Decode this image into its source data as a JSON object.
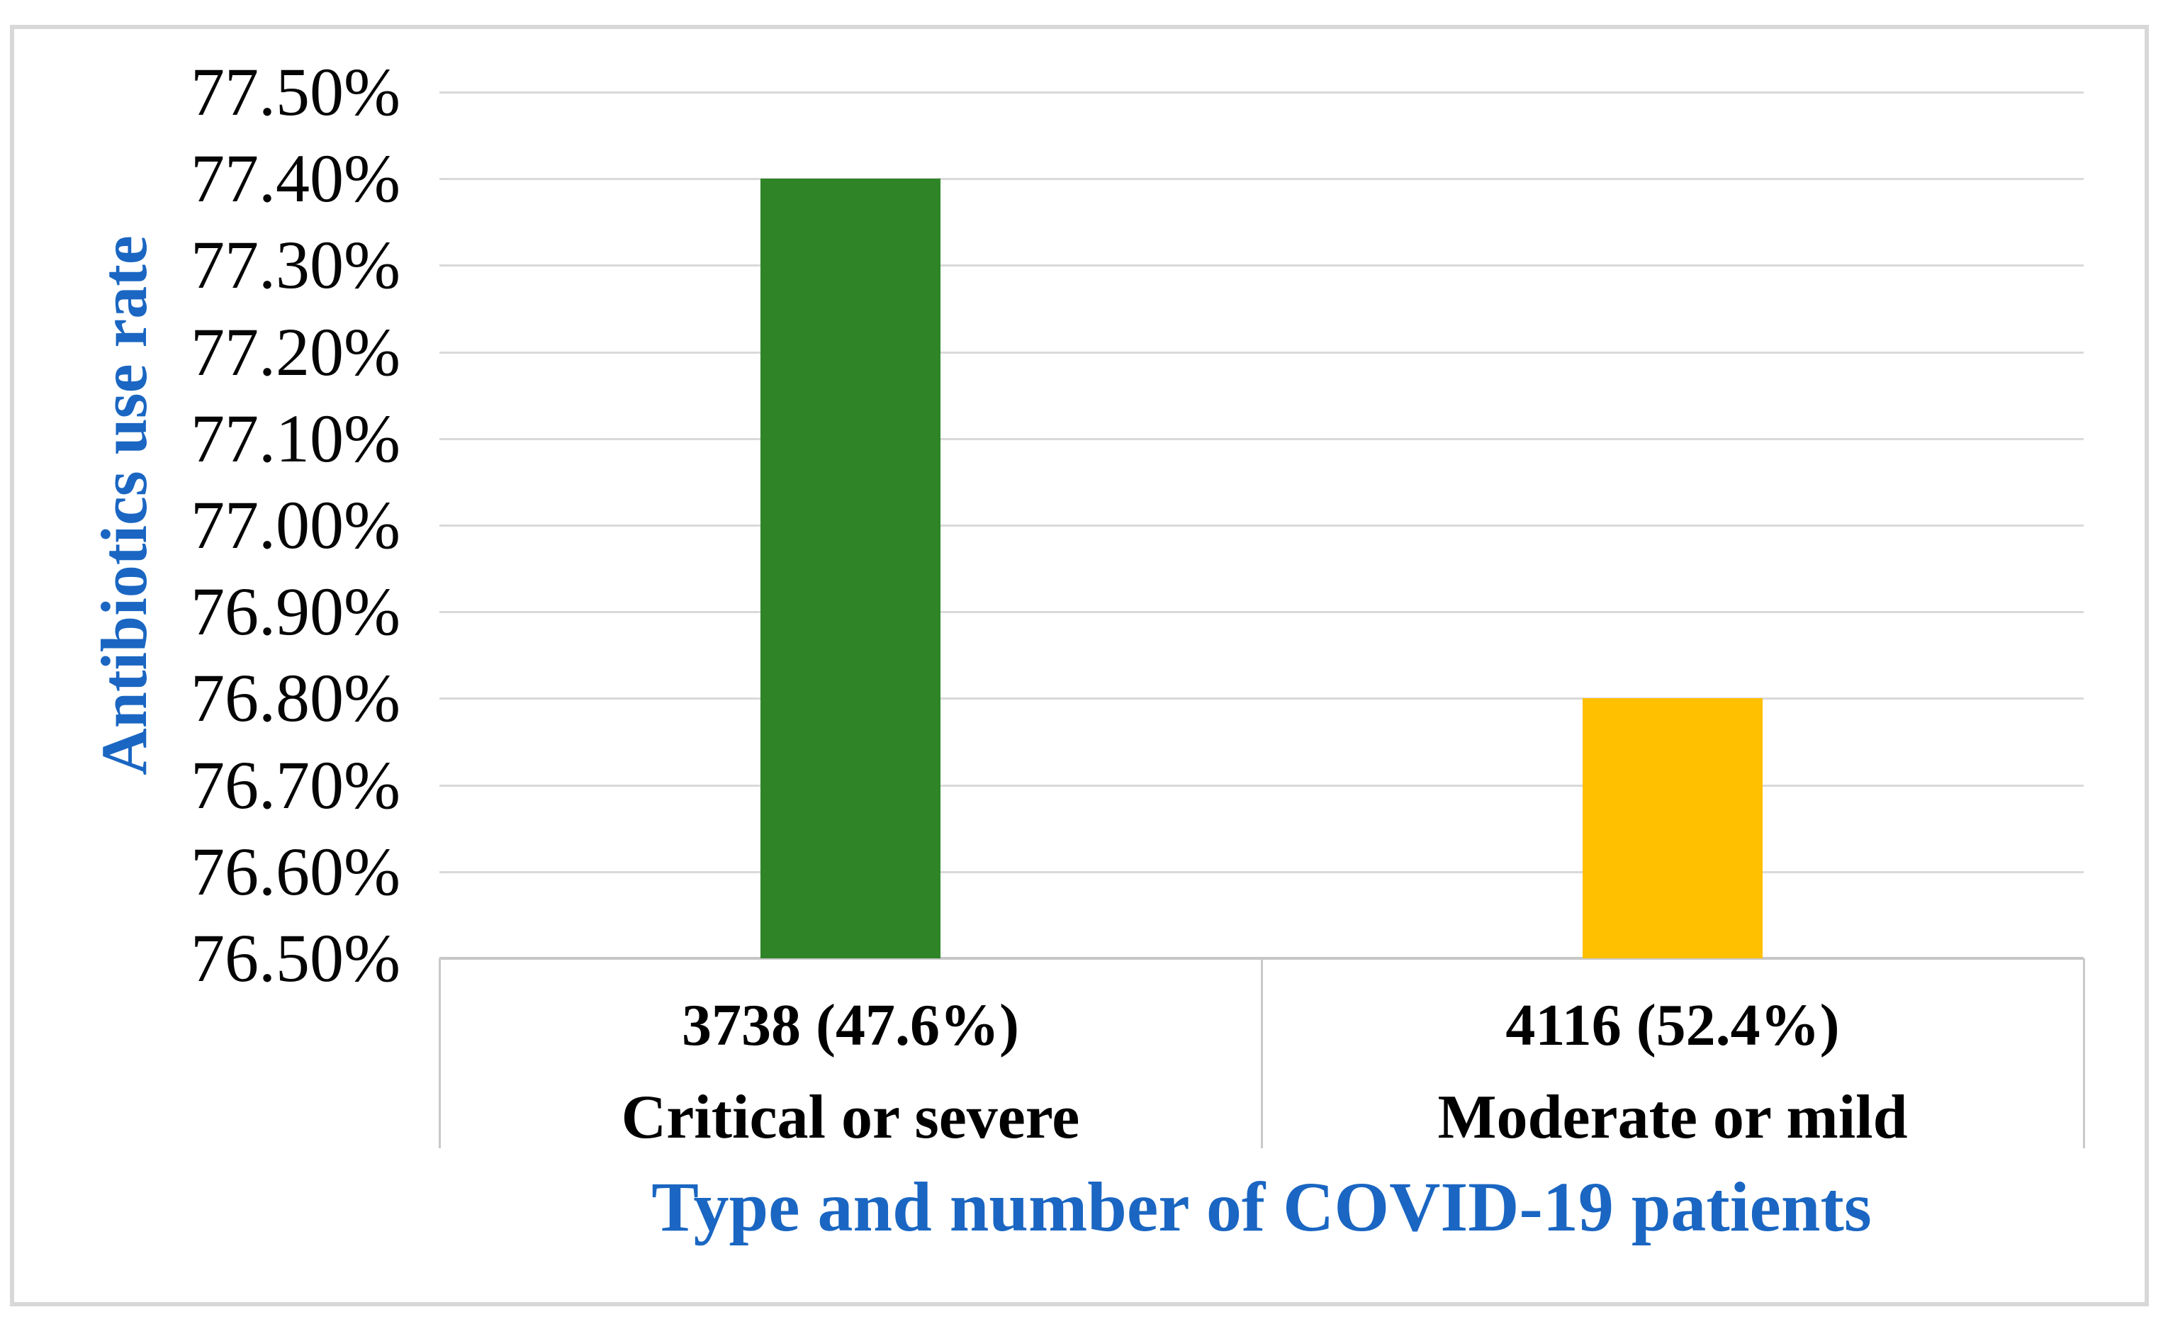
{
  "accent_colors": {
    "axis_title_blue": "#1a66c2",
    "bar_green": "#2e8427",
    "bar_yellow": "#ffc000",
    "gridline_gray": "#d9d9d9"
  },
  "chart_data": {
    "type": "bar",
    "title": "",
    "ylabel": "Antibiotics use rate",
    "xlabel": "Type and number of COVID-19 patients",
    "ylim": [
      76.5,
      77.5
    ],
    "ytick_labels": [
      "77.50%",
      "77.40%",
      "77.30%",
      "77.20%",
      "77.10%",
      "77.00%",
      "76.90%",
      "76.80%",
      "76.70%",
      "76.60%",
      "76.50%"
    ],
    "grid": true,
    "legend": "none",
    "categories": [
      "Critical or severe",
      "Moderate or mild"
    ],
    "category_counts": [
      "3738 (47.6%)",
      "4116 (52.4%)"
    ],
    "values": [
      77.4,
      76.8
    ],
    "bar_colors": [
      "#2e8427",
      "#ffc000"
    ]
  }
}
